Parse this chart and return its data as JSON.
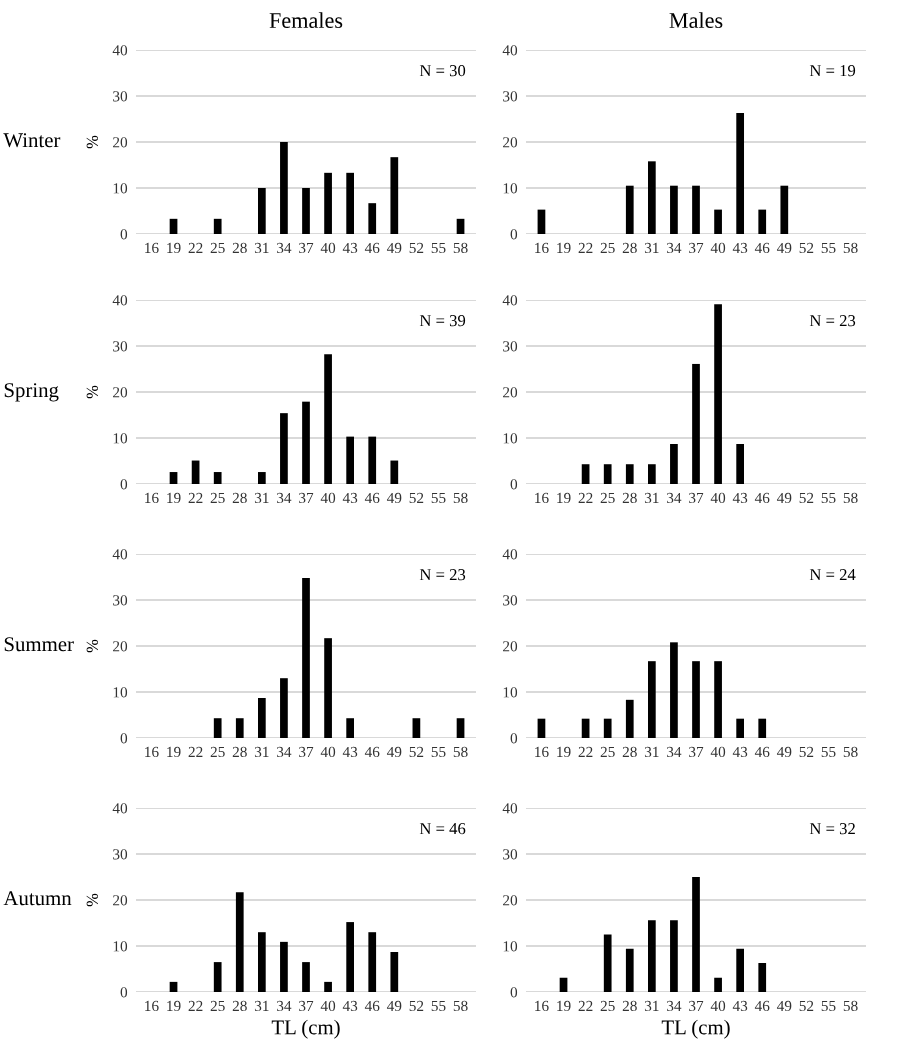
{
  "chart_data": [
    {
      "type": "bar",
      "title": "Females",
      "ylabel": "%",
      "categories": [
        "16",
        "19",
        "22",
        "25",
        "28",
        "31",
        "34",
        "37",
        "40",
        "43",
        "46",
        "49",
        "52",
        "55",
        "58"
      ],
      "values": [
        0,
        3.3,
        0,
        3.3,
        0,
        10,
        20,
        10,
        13.3,
        13.3,
        6.7,
        16.7,
        0,
        0,
        3.3
      ],
      "color": "#000000",
      "ylim": [
        0,
        40
      ],
      "yticks": [
        0,
        10,
        20,
        30,
        40
      ],
      "grid": "y",
      "annotations": [
        "N = 30",
        "Winter"
      ]
    },
    {
      "type": "bar",
      "title": "Males",
      "categories": [
        "16",
        "19",
        "22",
        "25",
        "28",
        "31",
        "34",
        "37",
        "40",
        "43",
        "46",
        "49",
        "52",
        "55",
        "58"
      ],
      "values": [
        5.3,
        0,
        0,
        0,
        10.5,
        15.8,
        10.5,
        10.5,
        5.3,
        26.3,
        5.3,
        10.5,
        0,
        0,
        0
      ],
      "color": "#000000",
      "ylim": [
        0,
        40
      ],
      "yticks": [
        0,
        10,
        20,
        30,
        40
      ],
      "grid": "y",
      "annotations": [
        "N = 19"
      ]
    },
    {
      "type": "bar",
      "ylabel": "%",
      "categories": [
        "16",
        "19",
        "22",
        "25",
        "28",
        "31",
        "34",
        "37",
        "40",
        "43",
        "46",
        "49",
        "52",
        "55",
        "58"
      ],
      "values": [
        0,
        2.6,
        5.1,
        2.6,
        0,
        2.6,
        15.4,
        17.9,
        28.2,
        10.3,
        10.3,
        5.1,
        0,
        0,
        0
      ],
      "color": "#000000",
      "ylim": [
        0,
        40
      ],
      "yticks": [
        0,
        10,
        20,
        30,
        40
      ],
      "grid": "y",
      "annotations": [
        "N = 39",
        "Spring"
      ]
    },
    {
      "type": "bar",
      "categories": [
        "16",
        "19",
        "22",
        "25",
        "28",
        "31",
        "34",
        "37",
        "40",
        "43",
        "46",
        "49",
        "52",
        "55",
        "58"
      ],
      "values": [
        0,
        0,
        4.3,
        4.3,
        4.3,
        4.3,
        8.7,
        26.1,
        39.1,
        8.7,
        0,
        0,
        0,
        0,
        0
      ],
      "color": "#000000",
      "ylim": [
        0,
        40
      ],
      "yticks": [
        0,
        10,
        20,
        30,
        40
      ],
      "grid": "y",
      "annotations": [
        "N = 23"
      ]
    },
    {
      "type": "bar",
      "ylabel": "%",
      "categories": [
        "16",
        "19",
        "22",
        "25",
        "28",
        "31",
        "34",
        "37",
        "40",
        "43",
        "46",
        "49",
        "52",
        "55",
        "58"
      ],
      "values": [
        0,
        0,
        0,
        4.3,
        4.3,
        8.7,
        13,
        34.8,
        21.7,
        4.3,
        0,
        0,
        4.3,
        0,
        4.3
      ],
      "color": "#000000",
      "ylim": [
        0,
        40
      ],
      "yticks": [
        0,
        10,
        20,
        30,
        40
      ],
      "grid": "y",
      "annotations": [
        "N = 23",
        "Summer"
      ]
    },
    {
      "type": "bar",
      "categories": [
        "16",
        "19",
        "22",
        "25",
        "28",
        "31",
        "34",
        "37",
        "40",
        "43",
        "46",
        "49",
        "52",
        "55",
        "58"
      ],
      "values": [
        4.2,
        0,
        4.2,
        4.2,
        8.3,
        16.7,
        20.8,
        16.7,
        16.7,
        4.2,
        4.2,
        0,
        0,
        0,
        0
      ],
      "color": "#000000",
      "ylim": [
        0,
        40
      ],
      "yticks": [
        0,
        10,
        20,
        30,
        40
      ],
      "grid": "y",
      "annotations": [
        "N = 24"
      ]
    },
    {
      "type": "bar",
      "ylabel": "%",
      "xlabel": "TL (cm)",
      "categories": [
        "16",
        "19",
        "22",
        "25",
        "28",
        "31",
        "34",
        "37",
        "40",
        "43",
        "46",
        "49",
        "52",
        "55",
        "58"
      ],
      "values": [
        0,
        2.2,
        0,
        6.5,
        21.7,
        13,
        10.9,
        6.5,
        2.2,
        15.2,
        13,
        8.7,
        0,
        0,
        0
      ],
      "color": "#000000",
      "ylim": [
        0,
        40
      ],
      "yticks": [
        0,
        10,
        20,
        30,
        40
      ],
      "grid": "y",
      "annotations": [
        "N = 46",
        "Autumn"
      ]
    },
    {
      "type": "bar",
      "xlabel": "TL (cm)",
      "categories": [
        "16",
        "19",
        "22",
        "25",
        "28",
        "31",
        "34",
        "37",
        "40",
        "43",
        "46",
        "49",
        "52",
        "55",
        "58"
      ],
      "values": [
        0,
        3.1,
        0,
        12.5,
        9.4,
        15.6,
        15.6,
        25,
        3.1,
        9.4,
        6.3,
        0,
        0,
        0,
        0
      ],
      "color": "#000000",
      "ylim": [
        0,
        40
      ],
      "yticks": [
        0,
        10,
        20,
        30,
        40
      ],
      "grid": "y",
      "annotations": [
        "N = 32"
      ]
    }
  ]
}
